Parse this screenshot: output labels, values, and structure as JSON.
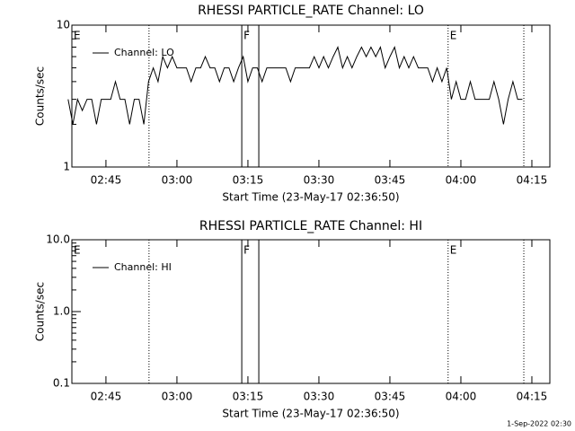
{
  "chart_data": [
    {
      "type": "line",
      "title": "RHESSI PARTICLE_RATE Channel: LO",
      "xlabel": "Start Time (23-May-17 02:36:50)",
      "ylabel": "Counts/sec",
      "x": [
        157,
        158,
        159,
        160,
        161,
        162,
        163,
        164,
        165,
        166,
        167,
        168,
        169,
        170,
        171,
        172,
        173,
        174,
        175,
        176,
        177,
        178,
        179,
        180,
        181,
        182,
        183,
        184,
        185,
        186,
        187,
        188,
        189,
        190,
        191,
        192,
        193,
        194,
        195,
        196,
        197,
        198,
        199,
        200,
        201,
        202,
        203,
        204,
        205,
        206,
        207,
        208,
        209,
        210,
        211,
        212,
        213,
        214,
        215,
        216,
        217,
        218,
        219,
        220,
        221,
        222,
        223,
        224,
        225,
        226,
        227,
        228,
        229,
        230,
        231,
        232,
        233,
        234,
        235,
        236,
        237,
        238,
        239,
        240,
        241,
        242,
        243,
        244,
        245,
        246,
        247,
        248,
        249,
        250,
        251,
        252,
        253
      ],
      "series": [
        {
          "name": "Channel: LO",
          "color": "#000000",
          "values": [
            3,
            2,
            3,
            2.5,
            3,
            3,
            2,
            3,
            3,
            3,
            4,
            3,
            3,
            2,
            3,
            3,
            2,
            4,
            5,
            4,
            6,
            5,
            6,
            5,
            5,
            5,
            4,
            5,
            5,
            6,
            5,
            5,
            4,
            5,
            5,
            4,
            5,
            6,
            4,
            5,
            5,
            4,
            5,
            5,
            5,
            5,
            5,
            4,
            5,
            5,
            5,
            5,
            6,
            5,
            6,
            5,
            6,
            7,
            5,
            6,
            5,
            6,
            7,
            6,
            7,
            6,
            7,
            5,
            6,
            7,
            5,
            6,
            5,
            6,
            5,
            5,
            5,
            4,
            5,
            4,
            5,
            3,
            4,
            3,
            3,
            4,
            3,
            3,
            3,
            3,
            4,
            3,
            2,
            3,
            4,
            3,
            3
          ]
        }
      ],
      "xlim": [
        157.8,
        258.8
      ],
      "xticks": [
        {
          "value": 165,
          "label": "02:45"
        },
        {
          "value": 180,
          "label": "03:00"
        },
        {
          "value": 195,
          "label": "03:15"
        },
        {
          "value": 210,
          "label": "03:30"
        },
        {
          "value": 225,
          "label": "03:45"
        },
        {
          "value": 240,
          "label": "04:00"
        },
        {
          "value": 255,
          "label": "04:15"
        }
      ],
      "ylim": [
        1,
        10
      ],
      "yticks": [
        1,
        10
      ],
      "log_y": true,
      "markers": [
        {
          "x": 174.1,
          "style": "dotted"
        },
        {
          "x": 193.7,
          "style": "solid"
        },
        {
          "x": 197.3,
          "style": "solid"
        },
        {
          "x": 237.3,
          "style": "dotted"
        },
        {
          "x": 253.3,
          "style": "dotted"
        }
      ],
      "flags": [
        {
          "x": 157.8,
          "label": "E"
        },
        {
          "x": 193.7,
          "label": "F"
        },
        {
          "x": 237.3,
          "label": "E"
        }
      ]
    },
    {
      "type": "line",
      "title": "RHESSI PARTICLE_RATE Channel: HI",
      "xlabel": "Start Time (23-May-17 02:36:50)",
      "ylabel": "Counts/sec",
      "x": [],
      "series": [
        {
          "name": "Channel: HI",
          "color": "#000000",
          "values": []
        }
      ],
      "xlim": [
        157.8,
        258.8
      ],
      "xticks": [
        {
          "value": 165,
          "label": "02:45"
        },
        {
          "value": 180,
          "label": "03:00"
        },
        {
          "value": 195,
          "label": "03:15"
        },
        {
          "value": 210,
          "label": "03:30"
        },
        {
          "value": 225,
          "label": "03:45"
        },
        {
          "value": 240,
          "label": "04:00"
        },
        {
          "value": 255,
          "label": "04:15"
        }
      ],
      "ylim": [
        0.1,
        10
      ],
      "yticks": [
        {
          "value": 10,
          "label": "10.0"
        },
        {
          "value": 1,
          "label": "1.0"
        },
        0.1
      ],
      "log_y": true,
      "markers": [
        {
          "x": 174.1,
          "style": "dotted"
        },
        {
          "x": 193.7,
          "style": "solid"
        },
        {
          "x": 197.3,
          "style": "solid"
        },
        {
          "x": 237.3,
          "style": "dotted"
        },
        {
          "x": 253.3,
          "style": "dotted"
        }
      ],
      "flags": [
        {
          "x": 157.8,
          "label": "E"
        },
        {
          "x": 193.7,
          "label": "F"
        },
        {
          "x": 237.3,
          "label": "E"
        }
      ]
    }
  ],
  "footer": "1-Sep-2022 02:30"
}
